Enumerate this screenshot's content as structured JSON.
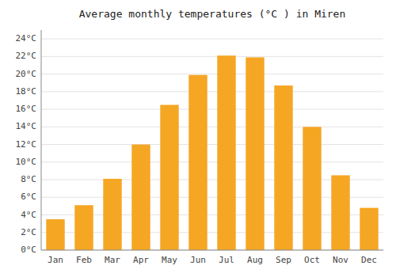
{
  "chart_data": {
    "type": "bar",
    "title": "Average monthly temperatures (°C ) in Miren",
    "categories": [
      "Jan",
      "Feb",
      "Mar",
      "Apr",
      "May",
      "Jun",
      "Jul",
      "Aug",
      "Sep",
      "Oct",
      "Nov",
      "Dec"
    ],
    "values": [
      3.5,
      5.1,
      8.1,
      12.0,
      16.5,
      19.9,
      22.1,
      21.9,
      18.7,
      14.0,
      8.5,
      4.8
    ],
    "color": "#F5A623",
    "ylim": [
      0,
      25
    ],
    "yticks": [
      {
        "value": 0,
        "label": "0°C"
      },
      {
        "value": 2,
        "label": "2°C"
      },
      {
        "value": 4,
        "label": "4°C"
      },
      {
        "value": 6,
        "label": "6°C"
      },
      {
        "value": 8,
        "label": "8°C"
      },
      {
        "value": 10,
        "label": "10°C"
      },
      {
        "value": 12,
        "label": "12°C"
      },
      {
        "value": 14,
        "label": "14°C"
      },
      {
        "value": 16,
        "label": "16°C"
      },
      {
        "value": 18,
        "label": "18°C"
      },
      {
        "value": 20,
        "label": "20°C"
      },
      {
        "value": 22,
        "label": "22°C"
      },
      {
        "value": 24,
        "label": "24°C"
      }
    ],
    "grid": true
  }
}
